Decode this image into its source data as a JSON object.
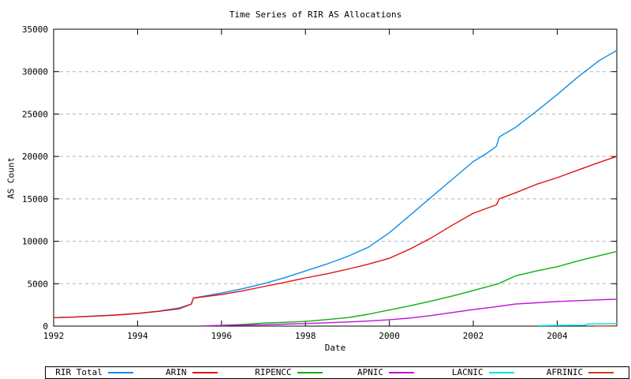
{
  "chart_data": {
    "type": "line",
    "title": "Time Series of RIR AS Allocations",
    "xlabel": "Date",
    "ylabel": "AS Count",
    "xlim": [
      1992,
      2005.42
    ],
    "ylim": [
      0,
      35000
    ],
    "x_ticks": [
      1992,
      1994,
      1996,
      1998,
      2000,
      2002,
      2004
    ],
    "y_ticks": [
      0,
      5000,
      10000,
      15000,
      20000,
      25000,
      30000,
      35000
    ],
    "grid": "horizontal dashed gray lines at each y tick",
    "legend_position": "bottom horizontal boxed row",
    "colors": {
      "grid": "#b4b4b4",
      "axis": "#000000",
      "background": "#ffffff"
    },
    "series": [
      {
        "name": "RIR Total",
        "color": "#0e8ee8",
        "points": [
          [
            1992,
            1000
          ],
          [
            1992.5,
            1070
          ],
          [
            1993,
            1200
          ],
          [
            1993.5,
            1320
          ],
          [
            1994,
            1500
          ],
          [
            1994.5,
            1760
          ],
          [
            1995,
            2150
          ],
          [
            1995.28,
            2600
          ],
          [
            1995.33,
            3300
          ],
          [
            1995.6,
            3550
          ],
          [
            1996,
            3900
          ],
          [
            1996.5,
            4400
          ],
          [
            1997,
            5000
          ],
          [
            1997.5,
            5700
          ],
          [
            1998,
            6500
          ],
          [
            1998.5,
            7300
          ],
          [
            1999,
            8200
          ],
          [
            1999.5,
            9300
          ],
          [
            2000,
            11000
          ],
          [
            2000.5,
            13100
          ],
          [
            2001,
            15200
          ],
          [
            2001.5,
            17300
          ],
          [
            2002,
            19400
          ],
          [
            2002.3,
            20300
          ],
          [
            2002.55,
            21200
          ],
          [
            2002.62,
            22300
          ],
          [
            2003,
            23400
          ],
          [
            2003.5,
            25300
          ],
          [
            2004,
            27300
          ],
          [
            2004.5,
            29400
          ],
          [
            2005,
            31300
          ],
          [
            2005.42,
            32500
          ]
        ]
      },
      {
        "name": "ARIN",
        "color": "#e01212",
        "points": [
          [
            1992,
            1000
          ],
          [
            1992.5,
            1060
          ],
          [
            1993,
            1180
          ],
          [
            1993.5,
            1300
          ],
          [
            1994,
            1490
          ],
          [
            1994.5,
            1740
          ],
          [
            1995,
            2050
          ],
          [
            1995.28,
            2600
          ],
          [
            1995.33,
            3300
          ],
          [
            1996,
            3720
          ],
          [
            1996.5,
            4150
          ],
          [
            1997,
            4650
          ],
          [
            1997.5,
            5150
          ],
          [
            1998,
            5680
          ],
          [
            1998.5,
            6150
          ],
          [
            1999,
            6700
          ],
          [
            1999.5,
            7300
          ],
          [
            2000,
            8000
          ],
          [
            2000.5,
            9100
          ],
          [
            2001,
            10400
          ],
          [
            2001.5,
            11900
          ],
          [
            2002,
            13300
          ],
          [
            2002.55,
            14300
          ],
          [
            2002.62,
            15000
          ],
          [
            2003,
            15700
          ],
          [
            2003.5,
            16700
          ],
          [
            2004,
            17500
          ],
          [
            2004.5,
            18400
          ],
          [
            2005,
            19300
          ],
          [
            2005.42,
            20000
          ]
        ]
      },
      {
        "name": "RIPENCC",
        "color": "#0fae0f",
        "points": [
          [
            1995.9,
            60
          ],
          [
            1996.5,
            200
          ],
          [
            1997,
            350
          ],
          [
            1997.5,
            450
          ],
          [
            1998,
            550
          ],
          [
            1998.5,
            760
          ],
          [
            1999,
            1000
          ],
          [
            1999.5,
            1400
          ],
          [
            2000,
            1900
          ],
          [
            2000.5,
            2400
          ],
          [
            2001,
            2950
          ],
          [
            2001.5,
            3550
          ],
          [
            2002,
            4200
          ],
          [
            2002.6,
            5000
          ],
          [
            2003,
            5900
          ],
          [
            2003.5,
            6500
          ],
          [
            2004,
            7000
          ],
          [
            2004.5,
            7700
          ],
          [
            2005,
            8300
          ],
          [
            2005.42,
            8800
          ]
        ]
      },
      {
        "name": "APNIC",
        "color": "#bf12d8",
        "points": [
          [
            1995.55,
            30
          ],
          [
            1996,
            80
          ],
          [
            1996.5,
            120
          ],
          [
            1997,
            160
          ],
          [
            1997.5,
            230
          ],
          [
            1998,
            300
          ],
          [
            1998.5,
            390
          ],
          [
            1999,
            480
          ],
          [
            1999.5,
            600
          ],
          [
            2000,
            750
          ],
          [
            2000.5,
            950
          ],
          [
            2001,
            1250
          ],
          [
            2001.5,
            1600
          ],
          [
            2002,
            1950
          ],
          [
            2002.5,
            2250
          ],
          [
            2003,
            2600
          ],
          [
            2003.5,
            2750
          ],
          [
            2004,
            2900
          ],
          [
            2004.5,
            3000
          ],
          [
            2005,
            3100
          ],
          [
            2005.42,
            3170
          ]
        ]
      },
      {
        "name": "LACNIC",
        "color": "#00e0e0",
        "points": [
          [
            2003.55,
            60
          ],
          [
            2004,
            80
          ],
          [
            2004.65,
            110
          ],
          [
            2004.72,
            250
          ],
          [
            2005,
            270
          ],
          [
            2005.42,
            300
          ]
        ]
      },
      {
        "name": "AFRINIC",
        "color": "#c84010",
        "points": [
          [
            2004.9,
            10
          ],
          [
            2005.42,
            30
          ]
        ]
      }
    ]
  }
}
